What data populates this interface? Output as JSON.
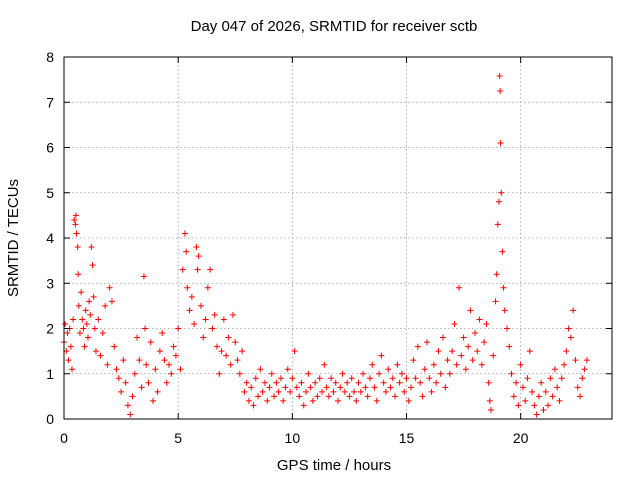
{
  "chart_data": {
    "type": "scatter",
    "title": "Day 047 of 2026, SRMTID for receiver sctb",
    "xlabel": "GPS time / hours",
    "ylabel": "SRMTID / TECUs",
    "xlim": [
      0,
      24
    ],
    "ylim": [
      0,
      8
    ],
    "xticks": [
      0,
      5,
      10,
      15,
      20
    ],
    "yticks": [
      0,
      1,
      2,
      3,
      4,
      5,
      6,
      7,
      8
    ],
    "grid": true,
    "marker": "+",
    "color": "#ff0000",
    "series": [
      {
        "name": "SRMTID",
        "points": [
          [
            0.0,
            1.7
          ],
          [
            0.05,
            2.1
          ],
          [
            0.1,
            1.5
          ],
          [
            0.15,
            1.9
          ],
          [
            0.2,
            1.3
          ],
          [
            0.25,
            2.0
          ],
          [
            0.3,
            1.6
          ],
          [
            0.35,
            1.1
          ],
          [
            0.4,
            2.2
          ],
          [
            0.45,
            4.4
          ],
          [
            0.5,
            4.3
          ],
          [
            0.52,
            4.5
          ],
          [
            0.55,
            4.1
          ],
          [
            0.6,
            3.8
          ],
          [
            0.62,
            3.2
          ],
          [
            0.65,
            2.5
          ],
          [
            0.7,
            1.9
          ],
          [
            0.75,
            2.8
          ],
          [
            0.8,
            2.2
          ],
          [
            0.85,
            2.0
          ],
          [
            0.9,
            1.6
          ],
          [
            0.95,
            2.4
          ],
          [
            1.0,
            2.1
          ],
          [
            1.05,
            1.8
          ],
          [
            1.1,
            2.6
          ],
          [
            1.15,
            2.3
          ],
          [
            1.2,
            3.8
          ],
          [
            1.25,
            3.4
          ],
          [
            1.3,
            2.7
          ],
          [
            1.35,
            2.0
          ],
          [
            1.4,
            1.5
          ],
          [
            1.5,
            2.2
          ],
          [
            1.6,
            1.4
          ],
          [
            1.7,
            1.9
          ],
          [
            1.8,
            2.5
          ],
          [
            1.9,
            1.2
          ],
          [
            2.0,
            2.9
          ],
          [
            2.1,
            2.6
          ],
          [
            2.2,
            1.6
          ],
          [
            2.3,
            1.1
          ],
          [
            2.4,
            0.9
          ],
          [
            2.5,
            0.6
          ],
          [
            2.6,
            1.3
          ],
          [
            2.7,
            0.8
          ],
          [
            2.8,
            0.3
          ],
          [
            2.9,
            0.1
          ],
          [
            3.0,
            0.5
          ],
          [
            3.1,
            1.0
          ],
          [
            3.2,
            1.8
          ],
          [
            3.3,
            1.3
          ],
          [
            3.4,
            0.7
          ],
          [
            3.5,
            3.15
          ],
          [
            3.55,
            2.0
          ],
          [
            3.6,
            1.2
          ],
          [
            3.7,
            0.8
          ],
          [
            3.8,
            1.7
          ],
          [
            3.9,
            0.4
          ],
          [
            4.0,
            1.1
          ],
          [
            4.1,
            0.6
          ],
          [
            4.2,
            1.5
          ],
          [
            4.3,
            1.9
          ],
          [
            4.4,
            1.3
          ],
          [
            4.5,
            0.8
          ],
          [
            4.6,
            1.2
          ],
          [
            4.7,
            1.0
          ],
          [
            4.8,
            1.6
          ],
          [
            4.9,
            1.4
          ],
          [
            5.0,
            2.0
          ],
          [
            5.1,
            1.1
          ],
          [
            5.2,
            3.3
          ],
          [
            5.3,
            4.1
          ],
          [
            5.35,
            3.7
          ],
          [
            5.4,
            2.9
          ],
          [
            5.5,
            2.4
          ],
          [
            5.6,
            2.7
          ],
          [
            5.7,
            2.1
          ],
          [
            5.8,
            3.8
          ],
          [
            5.85,
            3.3
          ],
          [
            5.9,
            3.6
          ],
          [
            6.0,
            2.5
          ],
          [
            6.1,
            1.8
          ],
          [
            6.2,
            2.2
          ],
          [
            6.3,
            2.9
          ],
          [
            6.4,
            3.3
          ],
          [
            6.5,
            2.0
          ],
          [
            6.6,
            2.3
          ],
          [
            6.7,
            1.6
          ],
          [
            6.8,
            1.0
          ],
          [
            6.9,
            1.5
          ],
          [
            7.0,
            2.2
          ],
          [
            7.1,
            1.4
          ],
          [
            7.2,
            1.8
          ],
          [
            7.3,
            1.2
          ],
          [
            7.4,
            2.3
          ],
          [
            7.5,
            1.7
          ],
          [
            7.6,
            1.3
          ],
          [
            7.7,
            1.0
          ],
          [
            7.8,
            1.5
          ],
          [
            7.9,
            0.6
          ],
          [
            8.0,
            0.8
          ],
          [
            8.1,
            0.4
          ],
          [
            8.2,
            0.7
          ],
          [
            8.3,
            0.3
          ],
          [
            8.4,
            0.9
          ],
          [
            8.5,
            0.5
          ],
          [
            8.6,
            1.1
          ],
          [
            8.7,
            0.6
          ],
          [
            8.8,
            0.8
          ],
          [
            8.9,
            0.4
          ],
          [
            9.0,
            0.7
          ],
          [
            9.1,
            1.0
          ],
          [
            9.2,
            0.5
          ],
          [
            9.3,
            0.8
          ],
          [
            9.4,
            0.6
          ],
          [
            9.5,
            0.9
          ],
          [
            9.6,
            0.4
          ],
          [
            9.7,
            0.7
          ],
          [
            9.8,
            1.1
          ],
          [
            9.9,
            0.6
          ],
          [
            10.0,
            0.9
          ],
          [
            10.1,
            1.5
          ],
          [
            10.2,
            0.7
          ],
          [
            10.3,
            0.5
          ],
          [
            10.4,
            0.8
          ],
          [
            10.5,
            0.3
          ],
          [
            10.6,
            0.6
          ],
          [
            10.7,
            1.0
          ],
          [
            10.8,
            0.7
          ],
          [
            10.9,
            0.4
          ],
          [
            11.0,
            0.8
          ],
          [
            11.1,
            0.5
          ],
          [
            11.2,
            0.9
          ],
          [
            11.3,
            0.6
          ],
          [
            11.4,
            1.2
          ],
          [
            11.5,
            0.7
          ],
          [
            11.6,
            0.5
          ],
          [
            11.7,
            0.9
          ],
          [
            11.8,
            0.6
          ],
          [
            11.9,
            0.8
          ],
          [
            12.0,
            0.4
          ],
          [
            12.1,
            0.7
          ],
          [
            12.2,
            1.0
          ],
          [
            12.3,
            0.6
          ],
          [
            12.4,
            0.8
          ],
          [
            12.5,
            0.5
          ],
          [
            12.6,
            0.9
          ],
          [
            12.7,
            0.6
          ],
          [
            12.8,
            0.4
          ],
          [
            12.9,
            0.8
          ],
          [
            13.0,
            0.6
          ],
          [
            13.1,
            1.0
          ],
          [
            13.2,
            0.7
          ],
          [
            13.3,
            0.5
          ],
          [
            13.4,
            0.9
          ],
          [
            13.5,
            1.2
          ],
          [
            13.6,
            0.7
          ],
          [
            13.7,
            0.4
          ],
          [
            13.8,
            1.0
          ],
          [
            13.9,
            1.4
          ],
          [
            14.0,
            0.8
          ],
          [
            14.1,
            0.6
          ],
          [
            14.2,
            1.1
          ],
          [
            14.3,
            0.7
          ],
          [
            14.4,
            0.9
          ],
          [
            14.5,
            0.5
          ],
          [
            14.6,
            1.2
          ],
          [
            14.7,
            0.8
          ],
          [
            14.8,
            1.0
          ],
          [
            14.9,
            0.6
          ],
          [
            15.0,
            0.9
          ],
          [
            15.1,
            0.4
          ],
          [
            15.2,
            0.7
          ],
          [
            15.3,
            1.3
          ],
          [
            15.4,
            0.9
          ],
          [
            15.5,
            1.6
          ],
          [
            15.6,
            0.8
          ],
          [
            15.7,
            0.5
          ],
          [
            15.8,
            1.1
          ],
          [
            15.9,
            1.7
          ],
          [
            16.0,
            0.9
          ],
          [
            16.1,
            0.6
          ],
          [
            16.2,
            1.2
          ],
          [
            16.3,
            0.8
          ],
          [
            16.4,
            1.5
          ],
          [
            16.5,
            1.0
          ],
          [
            16.6,
            1.8
          ],
          [
            16.7,
            0.7
          ],
          [
            16.8,
            1.3
          ],
          [
            16.9,
            1.0
          ],
          [
            17.0,
            1.5
          ],
          [
            17.1,
            2.1
          ],
          [
            17.2,
            1.2
          ],
          [
            17.3,
            2.9
          ],
          [
            17.4,
            1.4
          ],
          [
            17.5,
            1.8
          ],
          [
            17.6,
            1.1
          ],
          [
            17.7,
            1.6
          ],
          [
            17.8,
            2.4
          ],
          [
            17.9,
            1.3
          ],
          [
            18.0,
            1.9
          ],
          [
            18.1,
            1.5
          ],
          [
            18.2,
            2.2
          ],
          [
            18.3,
            1.2
          ],
          [
            18.4,
            1.7
          ],
          [
            18.5,
            2.1
          ],
          [
            18.6,
            0.8
          ],
          [
            18.65,
            0.4
          ],
          [
            18.7,
            0.2
          ],
          [
            18.8,
            1.4
          ],
          [
            18.9,
            2.6
          ],
          [
            18.95,
            3.2
          ],
          [
            19.0,
            4.3
          ],
          [
            19.05,
            4.8
          ],
          [
            19.08,
            7.58
          ],
          [
            19.1,
            7.25
          ],
          [
            19.12,
            6.1
          ],
          [
            19.15,
            5.0
          ],
          [
            19.2,
            3.7
          ],
          [
            19.25,
            2.9
          ],
          [
            19.3,
            2.4
          ],
          [
            19.4,
            2.0
          ],
          [
            19.5,
            1.6
          ],
          [
            19.6,
            1.0
          ],
          [
            19.7,
            0.5
          ],
          [
            19.8,
            0.8
          ],
          [
            19.9,
            0.3
          ],
          [
            20.0,
            1.2
          ],
          [
            20.1,
            0.7
          ],
          [
            20.2,
            0.4
          ],
          [
            20.3,
            0.9
          ],
          [
            20.4,
            1.5
          ],
          [
            20.5,
            0.6
          ],
          [
            20.6,
            0.3
          ],
          [
            20.7,
            0.1
          ],
          [
            20.8,
            0.5
          ],
          [
            20.9,
            0.8
          ],
          [
            21.0,
            0.2
          ],
          [
            21.1,
            0.6
          ],
          [
            21.2,
            0.3
          ],
          [
            21.3,
            0.9
          ],
          [
            21.4,
            0.5
          ],
          [
            21.5,
            1.1
          ],
          [
            21.6,
            0.7
          ],
          [
            21.7,
            0.4
          ],
          [
            21.8,
            0.9
          ],
          [
            21.9,
            1.2
          ],
          [
            22.0,
            1.5
          ],
          [
            22.1,
            2.0
          ],
          [
            22.2,
            1.8
          ],
          [
            22.3,
            2.4
          ],
          [
            22.4,
            1.3
          ],
          [
            22.5,
            0.7
          ],
          [
            22.6,
            0.5
          ],
          [
            22.7,
            0.9
          ],
          [
            22.8,
            1.1
          ],
          [
            22.9,
            1.3
          ]
        ]
      }
    ]
  }
}
